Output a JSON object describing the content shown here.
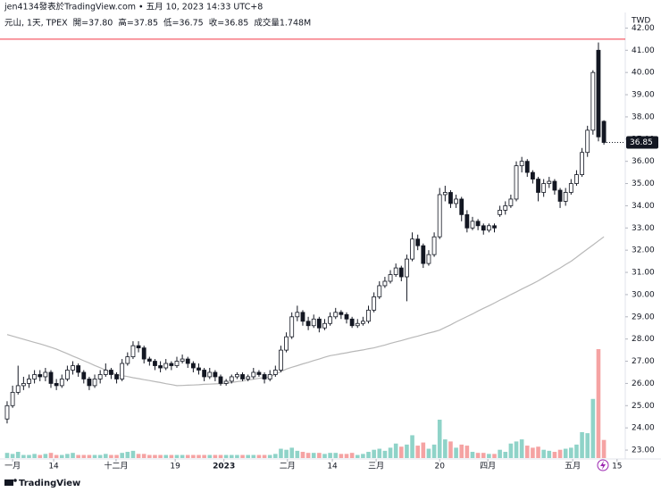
{
  "chart_data": {
    "type": "candlestick",
    "header": "jen4134發表於TradingView.com • 五月 10, 2023 14:33 UTC+8",
    "legend": [
      "元山, 1天, TPEX",
      "開=37.80",
      "高=37.85",
      "低=36.75",
      "收=36.85",
      "成交量1.748M"
    ],
    "currency": "TWD",
    "brand": "TradingView",
    "last_price": 36.85,
    "hline": 41.5,
    "hline_color": "#f23645",
    "up_color": "#ffffff",
    "down_color": "#131722",
    "vol_up_color": "#8fd3c8",
    "vol_down_color": "#f5a3a3",
    "ma_color": "#b8b8b8",
    "xlim": [
      -1.3,
      112.9
    ],
    "ylim": [
      22.6,
      42.7
    ],
    "xticks": [
      {
        "value": 1,
        "label": "一月"
      },
      {
        "value": 8.5,
        "label": "14"
      },
      {
        "value": 19.9,
        "label": "十二月"
      },
      {
        "value": 30.7,
        "label": "19"
      },
      {
        "value": 39.6,
        "label": "2023"
      },
      {
        "value": 51.2,
        "label": "二月"
      },
      {
        "value": 59.4,
        "label": "14"
      },
      {
        "value": 67.4,
        "label": "三月"
      },
      {
        "value": 79,
        "label": "20"
      },
      {
        "value": 87.8,
        "label": "四月"
      },
      {
        "value": 103.3,
        "label": "五月"
      },
      {
        "value": 111.4,
        "label": "15"
      }
    ],
    "yticks": [
      {
        "value": 23,
        "label": "23.00"
      },
      {
        "value": 24,
        "label": "24.00"
      },
      {
        "value": 25,
        "label": "25.00"
      },
      {
        "value": 26,
        "label": "26.00"
      },
      {
        "value": 27,
        "label": "27.00"
      },
      {
        "value": 28,
        "label": "28.00"
      },
      {
        "value": 29,
        "label": "29.00"
      },
      {
        "value": 30,
        "label": "30.00"
      },
      {
        "value": 31,
        "label": "31.00"
      },
      {
        "value": 32,
        "label": "32.00"
      },
      {
        "value": 33,
        "label": "33.00"
      },
      {
        "value": 34,
        "label": "34.00"
      },
      {
        "value": 35,
        "label": "35.00"
      },
      {
        "value": 36,
        "label": "36.00"
      },
      {
        "value": 37,
        "label": "37.00"
      },
      {
        "value": 38,
        "label": "38.00"
      },
      {
        "value": 39,
        "label": "39.00"
      },
      {
        "value": 40,
        "label": "40.00"
      },
      {
        "value": 41,
        "label": "41.00"
      },
      {
        "value": 42,
        "label": "42.00"
      }
    ],
    "ohlc": [
      [
        24.4,
        25.2,
        24.2,
        25.0
      ],
      [
        25.0,
        25.9,
        24.9,
        25.6
      ],
      [
        25.6,
        26.8,
        25.5,
        25.9
      ],
      [
        25.9,
        26.3,
        25.7,
        26.0
      ],
      [
        26.0,
        26.4,
        25.8,
        26.2
      ],
      [
        26.2,
        26.6,
        26.0,
        26.4
      ],
      [
        26.4,
        26.6,
        26.1,
        26.3
      ],
      [
        26.3,
        26.7,
        26.1,
        26.5
      ],
      [
        26.5,
        26.6,
        25.8,
        26.0
      ],
      [
        26.0,
        26.2,
        25.7,
        25.9
      ],
      [
        25.9,
        26.4,
        25.8,
        26.2
      ],
      [
        26.2,
        26.8,
        26.1,
        26.6
      ],
      [
        26.6,
        27.0,
        26.4,
        26.8
      ],
      [
        26.8,
        26.9,
        26.3,
        26.5
      ],
      [
        26.5,
        26.6,
        26.0,
        26.2
      ],
      [
        26.2,
        26.3,
        25.7,
        25.9
      ],
      [
        25.9,
        26.4,
        25.8,
        26.2
      ],
      [
        26.2,
        26.6,
        26.0,
        26.4
      ],
      [
        26.4,
        26.9,
        26.3,
        26.6
      ],
      [
        26.6,
        26.7,
        26.2,
        26.4
      ],
      [
        26.4,
        26.5,
        26.0,
        26.2
      ],
      [
        26.2,
        27.1,
        26.1,
        26.9
      ],
      [
        26.9,
        27.4,
        26.8,
        27.2
      ],
      [
        27.2,
        27.9,
        27.1,
        27.7
      ],
      [
        27.7,
        27.9,
        27.4,
        27.6
      ],
      [
        27.6,
        27.7,
        26.9,
        27.1
      ],
      [
        27.1,
        27.2,
        26.8,
        27.0
      ],
      [
        27.0,
        27.1,
        26.6,
        26.8
      ],
      [
        26.8,
        27.0,
        26.5,
        26.7
      ],
      [
        26.7,
        27.1,
        26.6,
        26.9
      ],
      [
        26.9,
        27.0,
        26.6,
        26.8
      ],
      [
        26.8,
        27.2,
        26.7,
        27.0
      ],
      [
        27.0,
        27.3,
        26.9,
        27.1
      ],
      [
        27.1,
        27.2,
        26.7,
        26.9
      ],
      [
        26.9,
        27.0,
        26.5,
        26.7
      ],
      [
        26.7,
        26.9,
        26.4,
        26.6
      ],
      [
        26.6,
        26.7,
        26.1,
        26.3
      ],
      [
        26.3,
        26.7,
        26.2,
        26.5
      ],
      [
        26.5,
        26.6,
        26.1,
        26.3
      ],
      [
        26.3,
        26.4,
        25.9,
        26.0
      ],
      [
        26.0,
        26.2,
        25.9,
        26.1
      ],
      [
        26.1,
        26.4,
        26.0,
        26.3
      ],
      [
        26.3,
        26.5,
        26.2,
        26.4
      ],
      [
        26.4,
        26.5,
        26.1,
        26.2
      ],
      [
        26.2,
        26.4,
        26.1,
        26.3
      ],
      [
        26.3,
        26.7,
        26.2,
        26.5
      ],
      [
        26.5,
        26.6,
        26.3,
        26.4
      ],
      [
        26.4,
        26.5,
        26.0,
        26.2
      ],
      [
        26.2,
        26.6,
        26.1,
        26.4
      ],
      [
        26.4,
        26.8,
        26.3,
        26.6
      ],
      [
        26.6,
        27.7,
        26.5,
        27.5
      ],
      [
        27.5,
        28.3,
        27.4,
        28.1
      ],
      [
        28.1,
        29.2,
        28.0,
        29.0
      ],
      [
        29.0,
        29.5,
        28.8,
        29.2
      ],
      [
        29.2,
        29.3,
        28.6,
        28.8
      ],
      [
        28.8,
        29.0,
        28.4,
        28.6
      ],
      [
        28.6,
        29.1,
        28.5,
        28.9
      ],
      [
        28.9,
        29.0,
        28.3,
        28.5
      ],
      [
        28.5,
        28.9,
        28.4,
        28.7
      ],
      [
        28.7,
        29.2,
        28.6,
        29.0
      ],
      [
        29.0,
        29.4,
        28.9,
        29.2
      ],
      [
        29.2,
        29.3,
        28.9,
        29.1
      ],
      [
        29.1,
        29.2,
        28.7,
        28.9
      ],
      [
        28.9,
        29.0,
        28.5,
        28.6
      ],
      [
        28.6,
        28.9,
        28.5,
        28.7
      ],
      [
        28.7,
        29.0,
        28.6,
        28.8
      ],
      [
        28.8,
        29.5,
        28.7,
        29.3
      ],
      [
        29.3,
        30.1,
        29.2,
        29.9
      ],
      [
        29.9,
        30.6,
        29.8,
        30.4
      ],
      [
        30.4,
        30.8,
        30.3,
        30.6
      ],
      [
        30.6,
        31.1,
        30.5,
        30.9
      ],
      [
        30.9,
        31.4,
        30.8,
        31.2
      ],
      [
        31.2,
        31.3,
        30.6,
        30.8
      ],
      [
        30.8,
        31.8,
        29.7,
        31.6
      ],
      [
        31.6,
        32.8,
        31.5,
        32.5
      ],
      [
        32.5,
        32.7,
        32.0,
        32.2
      ],
      [
        32.2,
        32.3,
        31.2,
        31.4
      ],
      [
        31.4,
        32.0,
        31.3,
        31.8
      ],
      [
        31.8,
        32.8,
        31.7,
        32.6
      ],
      [
        32.6,
        34.8,
        32.5,
        34.5
      ],
      [
        34.5,
        34.9,
        34.2,
        34.6
      ],
      [
        34.6,
        34.7,
        33.9,
        34.1
      ],
      [
        34.1,
        34.5,
        33.9,
        34.3
      ],
      [
        34.3,
        34.4,
        33.3,
        33.6
      ],
      [
        33.6,
        33.8,
        32.8,
        33.0
      ],
      [
        33.0,
        33.5,
        32.9,
        33.3
      ],
      [
        33.3,
        33.4,
        32.9,
        33.1
      ],
      [
        33.1,
        33.2,
        32.7,
        32.9
      ],
      [
        32.9,
        33.2,
        32.8,
        33.1
      ],
      [
        33.1,
        33.2,
        32.8,
        33.0
      ],
      [
        33.6,
        34.0,
        33.5,
        33.8
      ],
      [
        33.8,
        34.2,
        33.6,
        34.0
      ],
      [
        34.0,
        34.5,
        33.9,
        34.3
      ],
      [
        34.3,
        36.0,
        34.2,
        35.8
      ],
      [
        35.8,
        36.2,
        35.5,
        36.0
      ],
      [
        36.0,
        36.1,
        35.3,
        35.5
      ],
      [
        35.5,
        35.6,
        35.0,
        35.2
      ],
      [
        35.2,
        35.3,
        34.2,
        34.6
      ],
      [
        34.6,
        35.2,
        34.4,
        35.0
      ],
      [
        35.0,
        35.3,
        34.8,
        35.1
      ],
      [
        35.1,
        35.2,
        34.5,
        34.7
      ],
      [
        34.7,
        34.8,
        33.9,
        34.2
      ],
      [
        34.2,
        34.8,
        34.0,
        34.6
      ],
      [
        34.6,
        35.2,
        34.5,
        35.0
      ],
      [
        35.0,
        35.6,
        34.9,
        35.4
      ],
      [
        35.4,
        36.6,
        35.3,
        36.4
      ],
      [
        36.4,
        37.6,
        36.2,
        37.4
      ],
      [
        37.4,
        40.1,
        37.2,
        40.0
      ],
      [
        41.0,
        41.35,
        36.9,
        37.1
      ],
      [
        37.8,
        37.85,
        36.75,
        36.85
      ]
    ],
    "volume": [
      0.5,
      0.4,
      0.6,
      0.3,
      0.3,
      0.4,
      0.3,
      0.4,
      0.5,
      0.3,
      0.3,
      0.4,
      0.5,
      0.3,
      0.3,
      0.3,
      0.3,
      0.3,
      0.4,
      0.3,
      0.3,
      0.5,
      0.6,
      0.7,
      0.4,
      0.4,
      0.3,
      0.3,
      0.3,
      0.3,
      0.3,
      0.3,
      0.3,
      0.3,
      0.3,
      0.3,
      0.3,
      0.3,
      0.3,
      0.3,
      0.3,
      0.3,
      0.3,
      0.3,
      0.3,
      0.3,
      0.3,
      0.3,
      0.3,
      0.4,
      0.9,
      0.8,
      1.0,
      0.7,
      0.6,
      0.5,
      0.5,
      0.5,
      0.4,
      0.5,
      0.5,
      0.4,
      0.4,
      0.5,
      0.3,
      0.4,
      0.6,
      0.8,
      0.9,
      0.7,
      1.0,
      1.4,
      1.1,
      1.3,
      2.2,
      1.2,
      1.5,
      0.9,
      1.3,
      3.7,
      1.8,
      1.6,
      1.0,
      1.3,
      1.2,
      0.6,
      0.5,
      0.5,
      0.4,
      0.4,
      0.8,
      0.6,
      1.4,
      1.6,
      1.8,
      1.2,
      1.0,
      1.1,
      0.8,
      0.7,
      0.6,
      0.8,
      0.9,
      1.0,
      1.3,
      2.5,
      2.4,
      5.7,
      10.5,
      1.748
    ],
    "ma": [
      28.2,
      28.13,
      28.06,
      27.99,
      27.92,
      27.85,
      27.78,
      27.71,
      27.63,
      27.55,
      27.44,
      27.34,
      27.23,
      27.13,
      27.02,
      26.92,
      26.81,
      26.71,
      26.6,
      26.5,
      26.4,
      26.35,
      26.31,
      26.26,
      26.22,
      26.17,
      26.13,
      26.08,
      26.04,
      25.99,
      25.95,
      25.9,
      25.91,
      25.92,
      25.93,
      25.94,
      25.96,
      25.97,
      25.98,
      25.99,
      26.0,
      26.04,
      26.08,
      26.11,
      26.15,
      26.19,
      26.23,
      26.26,
      26.3,
      26.42,
      26.53,
      26.65,
      26.73,
      26.8,
      26.88,
      26.95,
      27.03,
      27.1,
      27.18,
      27.25,
      27.29,
      27.34,
      27.38,
      27.43,
      27.47,
      27.51,
      27.56,
      27.6,
      27.67,
      27.73,
      27.8,
      27.87,
      27.93,
      28.0,
      28.07,
      28.13,
      28.2,
      28.27,
      28.33,
      28.4,
      28.52,
      28.64,
      28.77,
      28.89,
      29.01,
      29.13,
      29.26,
      29.38,
      29.5,
      29.62,
      29.75,
      29.87,
      30.0,
      30.12,
      30.25,
      30.37,
      30.49,
      30.62,
      30.77,
      30.91,
      31.06,
      31.2,
      31.35,
      31.5,
      31.68,
      31.87,
      32.05,
      32.23,
      32.42,
      32.6
    ]
  }
}
